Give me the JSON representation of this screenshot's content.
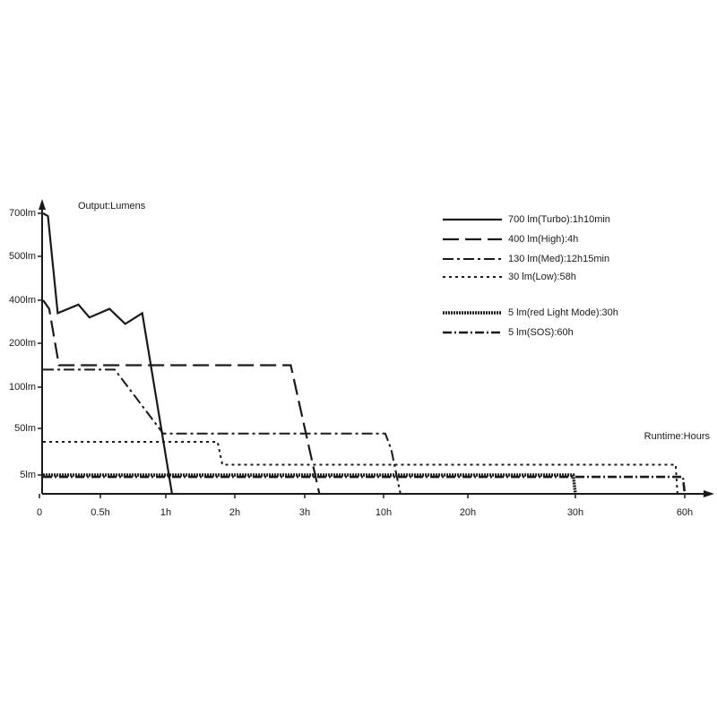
{
  "chart_data": {
    "type": "line",
    "y_axis_title": "Output:Lumens",
    "x_axis_title": "Runtime:Hours",
    "xlim": [
      0,
      60
    ],
    "xticks": [
      0,
      {
        "value": 0.5,
        "label": "0.5h"
      },
      {
        "value": 1,
        "label": "1h"
      },
      {
        "value": 2,
        "label": "2h"
      },
      {
        "value": 3,
        "label": "3h"
      },
      {
        "value": 10,
        "label": "10h"
      },
      {
        "value": 20,
        "label": "20h"
      },
      {
        "value": 30,
        "label": "30h"
      },
      {
        "value": 60,
        "label": "60h"
      }
    ],
    "ylim": [
      0,
      700
    ],
    "yticks": [
      {
        "value": 5,
        "label": "5lm"
      },
      {
        "value": 50,
        "label": "50lm"
      },
      {
        "value": 100,
        "label": "100lm"
      },
      {
        "value": 200,
        "label": "200lm"
      },
      {
        "value": 400,
        "label": "400lm"
      },
      {
        "value": 500,
        "label": "500lm"
      },
      {
        "value": 700,
        "label": "700lm"
      }
    ],
    "series": [
      {
        "name": "700 lm(Turbo):1h10min",
        "color": "#1a1a1a",
        "style": "solid",
        "x": [
          0.03,
          0.07,
          0.15,
          0.32,
          0.41,
          0.57,
          0.69,
          0.82,
          1.09
        ],
        "values": [
          700,
          687,
          340,
          380,
          320,
          360,
          290,
          340,
          0
        ]
      },
      {
        "name": "400 lm(High):4h",
        "color": "#1a1a1a",
        "style": "dash",
        "x": [
          0.03,
          0.08,
          0.16,
          2.8,
          4.3
        ],
        "values": [
          400,
          360,
          150,
          150,
          0
        ]
      },
      {
        "name": "130 lm(Med):12h15min",
        "color": "#1a1a1a",
        "style": "dashdot",
        "x": [
          0.03,
          0.61,
          0.98,
          10.2,
          10.9,
          12
        ],
        "values": [
          140,
          140,
          45,
          45,
          30,
          0
        ]
      },
      {
        "name": "30 lm(Low):58h",
        "color": "#1a1a1a",
        "style": "dot",
        "x": [
          0.03,
          1.75,
          1.82,
          57.5,
          58
        ],
        "values": [
          37,
          37,
          15,
          15,
          0
        ]
      },
      {
        "name": "5 lm(red Light Mode):30h",
        "color": "#1a1a1a",
        "style": "densedot",
        "x": [
          0.03,
          29.8,
          30
        ],
        "values": [
          5,
          5,
          0
        ]
      },
      {
        "name": "5 lm(SOS):60h",
        "color": "#1a1a1a",
        "style": "sos",
        "x": [
          0.03,
          59.5,
          60
        ],
        "values": [
          4.5,
          4.5,
          0
        ]
      }
    ]
  }
}
